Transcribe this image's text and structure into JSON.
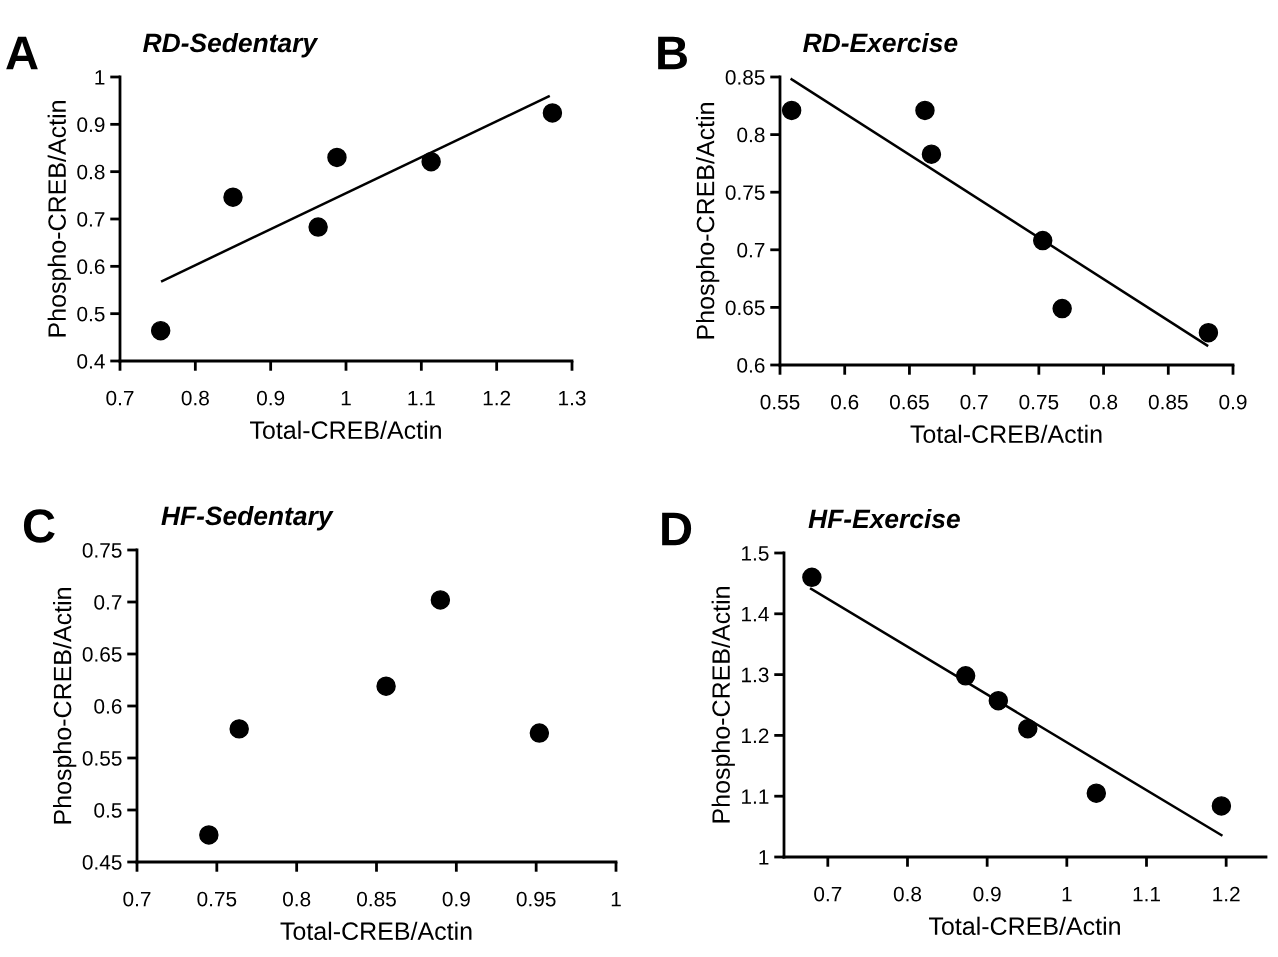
{
  "chart_data": [
    {
      "type": "scatter",
      "title": "RD-Sedentary",
      "xlabel": "Total-CREB/Actin",
      "ylabel": "Phospho-CREB/Actin",
      "annotations": [
        "A"
      ],
      "marker": "circle",
      "grid": false,
      "xlim": [
        0.7,
        1.3
      ],
      "xticks": [
        0.7,
        0.8,
        0.9,
        1,
        1.1,
        1.2,
        1.3
      ],
      "ylim": [
        0.4,
        1
      ],
      "yticks": [
        0.4,
        0.5,
        0.6,
        0.7,
        0.8,
        0.9,
        1
      ],
      "series": [
        {
          "color": "#000000",
          "x": [
            0.754,
            0.85,
            0.963,
            0.988,
            1.113,
            1.274
          ],
          "values": [
            0.464,
            0.746,
            0.683,
            0.83,
            0.821,
            0.924
          ]
        },
        {
          "type": "line",
          "color": "#000000",
          "marker": "none",
          "x": [
            0.756,
            1.269
          ],
          "values": [
            0.569,
            0.959
          ]
        }
      ]
    },
    {
      "type": "scatter",
      "title": "RD-Exercise",
      "xlabel": "Total-CREB/Actin",
      "ylabel": "Phospho-CREB/Actin",
      "annotations": [
        "B"
      ],
      "marker": "circle",
      "grid": false,
      "xlim": [
        0.55,
        0.9
      ],
      "xticks": [
        0.55,
        0.6,
        0.65,
        0.7,
        0.75,
        0.8,
        0.85,
        0.9
      ],
      "ylim": [
        0.6,
        0.85
      ],
      "yticks": [
        0.6,
        0.65,
        0.7,
        0.75,
        0.8,
        0.85
      ],
      "series": [
        {
          "color": "#000000",
          "x": [
            0.559,
            0.662,
            0.667,
            0.753,
            0.768,
            0.881
          ],
          "values": [
            0.821,
            0.821,
            0.783,
            0.708,
            0.649,
            0.628
          ]
        },
        {
          "type": "line",
          "color": "#000000",
          "marker": "none",
          "x": [
            0.559,
            0.88
          ],
          "values": [
            0.848,
            0.617
          ]
        }
      ]
    },
    {
      "type": "scatter",
      "title": "HF-Sedentary",
      "xlabel": "Total-CREB/Actin",
      "ylabel": "Phospho-CREB/Actin",
      "annotations": [
        "C"
      ],
      "marker": "circle",
      "grid": false,
      "xlim": [
        0.7,
        1
      ],
      "xticks": [
        0.7,
        0.75,
        0.8,
        0.85,
        0.9,
        0.95,
        1
      ],
      "ylim": [
        0.45,
        0.75
      ],
      "yticks": [
        0.45,
        0.5,
        0.55,
        0.6,
        0.65,
        0.7,
        0.75
      ],
      "series": [
        {
          "color": "#000000",
          "x": [
            0.745,
            0.764,
            0.856,
            0.89,
            0.952
          ],
          "values": [
            0.476,
            0.578,
            0.619,
            0.702,
            0.574
          ]
        }
      ]
    },
    {
      "type": "scatter",
      "title": "HF-Exercise",
      "xlabel": "Total-CREB/Actin",
      "ylabel": "Phospho-CREB/Actin",
      "annotations": [
        "D"
      ],
      "marker": "circle",
      "grid": false,
      "xlim": [
        0.645,
        1.25
      ],
      "xticks": [
        0.7,
        0.8,
        0.9,
        1,
        1.1,
        1.2
      ],
      "ylim": [
        1,
        1.5
      ],
      "yticks": [
        1,
        1.1,
        1.2,
        1.3,
        1.4,
        1.5
      ],
      "series": [
        {
          "color": "#000000",
          "x": [
            0.68,
            0.873,
            0.914,
            0.951,
            1.037,
            1.194
          ],
          "values": [
            1.46,
            1.298,
            1.257,
            1.211,
            1.105,
            1.084
          ]
        },
        {
          "type": "line",
          "color": "#000000",
          "marker": "none",
          "x": [
            0.679,
            1.194
          ],
          "values": [
            1.441,
            1.036
          ]
        }
      ]
    }
  ]
}
